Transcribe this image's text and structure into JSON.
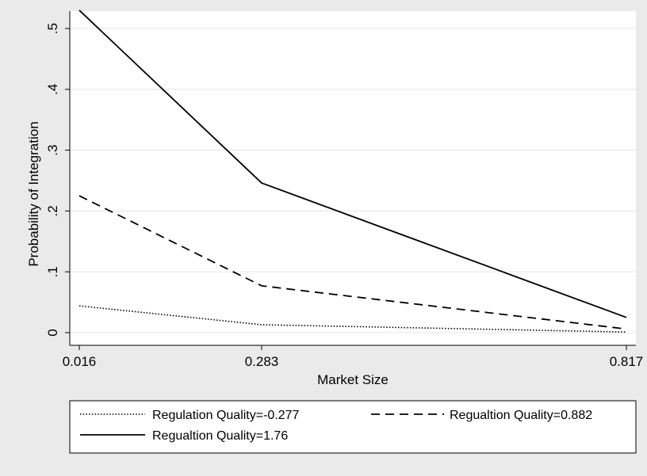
{
  "chart_data": {
    "type": "line",
    "title": "",
    "xlabel": "Market Size",
    "ylabel": "Probability of Integration",
    "x": [
      0.016,
      0.283,
      0.817
    ],
    "x_tick_labels": [
      "0.016",
      "0.283",
      "0.817"
    ],
    "xlim": [
      0.016,
      0.817
    ],
    "y_ticks": [
      0,
      0.1,
      0.2,
      0.3,
      0.4,
      0.5
    ],
    "y_tick_labels": [
      "0",
      ".1",
      ".2",
      ".3",
      ".4",
      ".5"
    ],
    "ylim": [
      0,
      0.5
    ],
    "grid": "horizontal",
    "legend_position": "bottom",
    "series": [
      {
        "name": "Regulation Quality=-0.277",
        "style": "dotted",
        "color": "#000000",
        "values": [
          0.044,
          0.013,
          0.001
        ]
      },
      {
        "name": "Regualtion Quality=0.882",
        "style": "dashed",
        "color": "#000000",
        "values": [
          0.225,
          0.077,
          0.006
        ]
      },
      {
        "name": "Regualtion Quality=1.76",
        "style": "solid",
        "color": "#000000",
        "values": [
          0.53,
          0.246,
          0.025
        ]
      }
    ]
  }
}
